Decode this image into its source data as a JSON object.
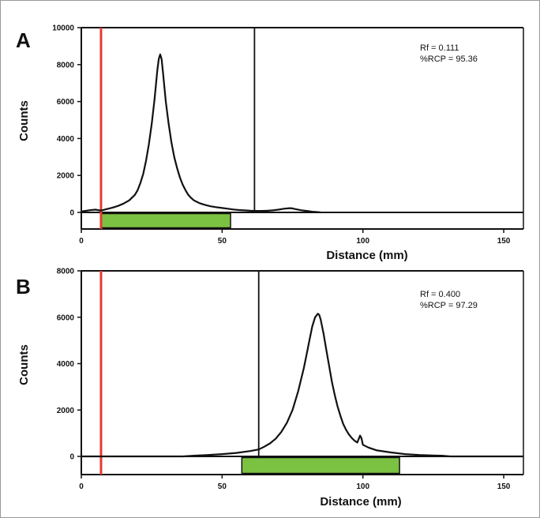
{
  "figure": {
    "border_color": "#999999"
  },
  "chart_data": [
    {
      "type": "line",
      "panel_label": "A",
      "xlabel": "Distance (mm)",
      "ylabel": "Counts",
      "xlim": [
        0,
        157
      ],
      "ylim": [
        0,
        10000
      ],
      "xticks": [
        0,
        50,
        100,
        150
      ],
      "yticks": [
        0,
        2000,
        4000,
        6000,
        8000,
        10000
      ],
      "grid": false,
      "annotations": [
        "Rf = 0.111",
        "%RCP = 95.36"
      ],
      "origin_line_x": 7,
      "front_line_x": 61.5,
      "roi": [
        7,
        53
      ],
      "colors": {
        "trace": "#111111",
        "origin_line": "#e8392f",
        "front_line": "#111111",
        "roi_bar": "#7cc242"
      },
      "series": [
        {
          "x": [
            0,
            3,
            5,
            7,
            9,
            11,
            13,
            15,
            17,
            19,
            20,
            21,
            22,
            23,
            24,
            25,
            26,
            26.5,
            27,
            27.5,
            28,
            28.5,
            29,
            29.5,
            30,
            31,
            32,
            33,
            34,
            35,
            36,
            37,
            38,
            39,
            40,
            42,
            44,
            46,
            48,
            50,
            52,
            54,
            56,
            58,
            60,
            62,
            64,
            66,
            68,
            70,
            72,
            74,
            75,
            76,
            78,
            80,
            82,
            84,
            85
          ],
          "y": [
            50,
            120,
            150,
            100,
            180,
            250,
            350,
            480,
            650,
            950,
            1200,
            1600,
            2100,
            2800,
            3700,
            4800,
            6100,
            6900,
            7700,
            8300,
            8550,
            8300,
            7600,
            6800,
            6000,
            4800,
            3800,
            3000,
            2400,
            1900,
            1500,
            1200,
            950,
            780,
            650,
            500,
            400,
            330,
            280,
            240,
            200,
            160,
            130,
            110,
            90,
            80,
            80,
            90,
            110,
            150,
            200,
            230,
            220,
            180,
            120,
            80,
            40,
            15,
            0
          ]
        }
      ]
    },
    {
      "type": "line",
      "panel_label": "B",
      "xlabel": "Distance (mm)",
      "ylabel": "Counts",
      "xlim": [
        0,
        157
      ],
      "ylim": [
        0,
        8000
      ],
      "xticks": [
        0,
        50,
        100,
        150
      ],
      "yticks": [
        0,
        2000,
        4000,
        6000,
        8000
      ],
      "grid": false,
      "annotations": [
        "Rf = 0.400",
        "%RCP = 97.29"
      ],
      "origin_line_x": 7,
      "front_line_x": 63,
      "roi": [
        57,
        113
      ],
      "colors": {
        "trace": "#111111",
        "origin_line": "#e8392f",
        "front_line": "#111111",
        "roi_bar": "#7cc242"
      },
      "series": [
        {
          "x": [
            0,
            36,
            40,
            45,
            50,
            55,
            60,
            63,
            65,
            67,
            69,
            71,
            73,
            75,
            77,
            79,
            80,
            81,
            82,
            83,
            84,
            84.5,
            85,
            86,
            87,
            88,
            89,
            90,
            91,
            92,
            93,
            94,
            95,
            96,
            97,
            98,
            99,
            99.5,
            100,
            102,
            105,
            110,
            115,
            120,
            125,
            128,
            131,
            157
          ],
          "y": [
            0,
            0,
            30,
            60,
            100,
            150,
            230,
            300,
            420,
            560,
            760,
            1050,
            1450,
            2000,
            2800,
            3800,
            4400,
            5000,
            5600,
            6000,
            6150,
            6100,
            5900,
            5300,
            4600,
            3900,
            3200,
            2650,
            2150,
            1750,
            1400,
            1150,
            950,
            800,
            680,
            600,
            900,
            780,
            500,
            380,
            260,
            170,
            100,
            60,
            40,
            30,
            0,
            0
          ]
        }
      ]
    }
  ]
}
